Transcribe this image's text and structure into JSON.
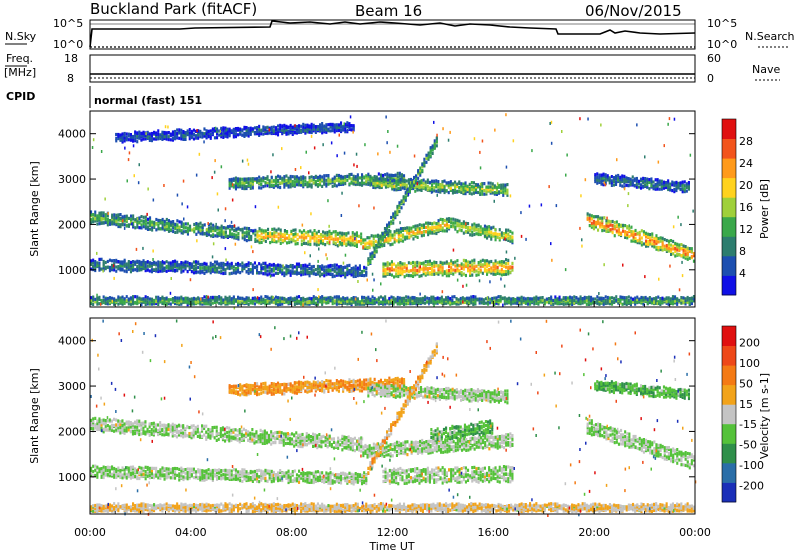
{
  "header": {
    "site": "Buckland Park (fitACF)",
    "beam": "Beam 16",
    "date": "06/Nov/2015"
  },
  "strips": {
    "nsky_label": "N.Sky",
    "nsearch_label": "N.Search",
    "nsky_ticks": [
      "10^5",
      "10^0"
    ],
    "nsearch_ticks": [
      "10^5",
      "10^0"
    ],
    "freq_label": "Freq.",
    "freq_unit": "[MHz]",
    "freq_ticks": [
      "18",
      "8"
    ],
    "nave_label": "Nave",
    "nave_ticks": [
      "60",
      "0"
    ],
    "cpid_label": "CPID",
    "cpid_text": "normal (fast) 151"
  },
  "colors": {
    "power_scale": [
      "#1010e6",
      "#1d4fb0",
      "#2d7d6e",
      "#3aa84a",
      "#9fd03a",
      "#ffd21e",
      "#ff9a1a",
      "#f2541c",
      "#e01010"
    ],
    "velocity_scale": [
      "#1a2fb8",
      "#2a6ea8",
      "#2f8f4a",
      "#55c23a",
      "#c4c4c4",
      "#f2a31a",
      "#f47a14",
      "#ee4818",
      "#e01010"
    ]
  },
  "chart_data": [
    {
      "type": "heatmap",
      "name": "power",
      "ylabel": "Slant Range [km]",
      "xlabel": "",
      "x_ticks": [
        "00:00",
        "04:00",
        "08:00",
        "12:00",
        "16:00",
        "20:00",
        "00:00"
      ],
      "y_ticks": [
        "1000",
        "2000",
        "3000",
        "4000"
      ],
      "ylim": [
        180,
        4500
      ],
      "colorbar_label": "Power [dB]",
      "colorbar_ticks": [
        "4",
        "8",
        "12",
        "16",
        "20",
        "24",
        "28"
      ],
      "bands": [
        {
          "t0": 0.0,
          "t1": 6.6,
          "r_start": 2150,
          "r_end": 1750,
          "width": 220,
          "level": 0.45
        },
        {
          "t0": 6.6,
          "t1": 10.8,
          "r_start": 1750,
          "r_end": 1650,
          "width": 260,
          "level": 0.75
        },
        {
          "t0": 10.8,
          "t1": 14.2,
          "r_start": 1550,
          "r_end": 2000,
          "width": 240,
          "level": 0.7
        },
        {
          "t0": 14.2,
          "t1": 16.8,
          "r_start": 2000,
          "r_end": 1700,
          "width": 220,
          "level": 0.6
        },
        {
          "t0": 5.5,
          "t1": 12.5,
          "r_start": 2900,
          "r_end": 3000,
          "width": 200,
          "level": 0.45
        },
        {
          "t0": 11.2,
          "t1": 16.6,
          "r_start": 2900,
          "r_end": 2750,
          "width": 200,
          "level": 0.55
        },
        {
          "t0": 11.0,
          "t1": 13.8,
          "r_start": 1150,
          "r_end": 3900,
          "width": 160,
          "level": 0.5
        },
        {
          "t0": 11.6,
          "t1": 16.8,
          "r_start": 1000,
          "r_end": 1050,
          "width": 280,
          "level": 0.8
        },
        {
          "t0": 0.0,
          "t1": 11.0,
          "r_start": 1100,
          "r_end": 950,
          "width": 200,
          "level": 0.3
        },
        {
          "t0": 0.0,
          "t1": 24.0,
          "r_start": 300,
          "r_end": 300,
          "width": 140,
          "level": 0.45
        },
        {
          "t0": 19.7,
          "t1": 24.0,
          "r_start": 2100,
          "r_end": 1300,
          "width": 260,
          "level": 0.85
        },
        {
          "t0": 20.0,
          "t1": 23.8,
          "r_start": 3000,
          "r_end": 2800,
          "width": 180,
          "level": 0.3
        },
        {
          "t0": 1.0,
          "t1": 10.5,
          "r_start": 3900,
          "r_end": 4150,
          "width": 160,
          "level": 0.2
        }
      ]
    },
    {
      "type": "heatmap",
      "name": "velocity",
      "ylabel": "Slant Range [km]",
      "xlabel": "Time UT",
      "x_ticks": [
        "00:00",
        "04:00",
        "08:00",
        "12:00",
        "16:00",
        "20:00",
        "00:00"
      ],
      "y_ticks": [
        "1000",
        "2000",
        "3000",
        "4000"
      ],
      "ylim": [
        180,
        4500
      ],
      "colorbar_label": "Velocity [m s-1]",
      "colorbar_ticks": [
        "200",
        "100",
        "50",
        "15",
        "-15",
        "-50",
        "-100",
        "-200"
      ],
      "bands": [
        {
          "t0": 0.0,
          "t1": 10.8,
          "r_start": 2150,
          "r_end": 1700,
          "width": 240,
          "level": 0.45
        },
        {
          "t0": 10.8,
          "t1": 16.8,
          "r_start": 1550,
          "r_end": 1800,
          "width": 240,
          "level": 0.45
        },
        {
          "t0": 5.5,
          "t1": 12.5,
          "r_start": 2900,
          "r_end": 3050,
          "width": 200,
          "level": 0.65
        },
        {
          "t0": 11.0,
          "t1": 16.6,
          "r_start": 2900,
          "r_end": 2750,
          "width": 200,
          "level": 0.45
        },
        {
          "t0": 11.0,
          "t1": 13.8,
          "r_start": 1150,
          "r_end": 3900,
          "width": 160,
          "level": 0.6
        },
        {
          "t0": 11.6,
          "t1": 16.8,
          "r_start": 1000,
          "r_end": 1050,
          "width": 280,
          "level": 0.45
        },
        {
          "t0": 0.0,
          "t1": 11.0,
          "r_start": 1100,
          "r_end": 950,
          "width": 200,
          "level": 0.45
        },
        {
          "t0": 0.0,
          "t1": 24.0,
          "r_start": 300,
          "r_end": 300,
          "width": 140,
          "level": 0.55
        },
        {
          "t0": 19.7,
          "t1": 24.0,
          "r_start": 2100,
          "r_end": 1300,
          "width": 260,
          "level": 0.45
        },
        {
          "t0": 20.0,
          "t1": 23.8,
          "r_start": 3000,
          "r_end": 2800,
          "width": 180,
          "level": 0.35
        },
        {
          "t0": 13.5,
          "t1": 16.0,
          "r_start": 1900,
          "r_end": 2100,
          "width": 220,
          "level": 0.35
        }
      ]
    }
  ]
}
